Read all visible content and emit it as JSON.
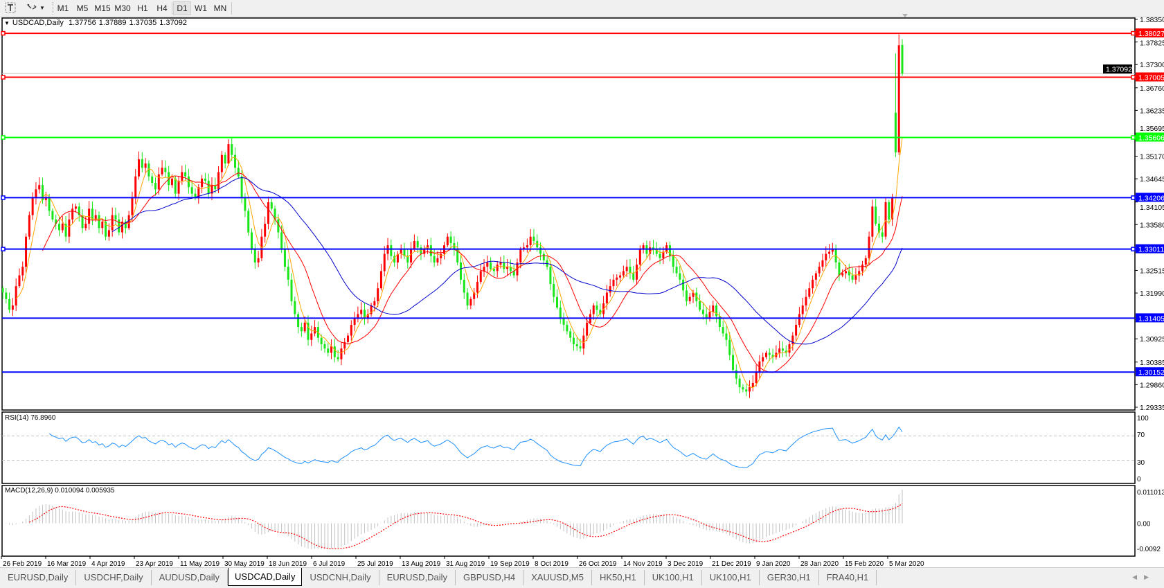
{
  "toolbar": {
    "text_tool_icon": "text-label-icon",
    "arrows_tool_icon": "arrows-icon",
    "timeframes": [
      "M1",
      "M5",
      "M15",
      "M30",
      "H1",
      "H4",
      "D1",
      "W1",
      "MN"
    ],
    "active_timeframe": "D1"
  },
  "header": {
    "symbol": "USDCAD,Daily",
    "open": "1.37756",
    "high": "1.37889",
    "low": "1.37035",
    "close": "1.37092"
  },
  "chart_data": {
    "type": "candlestick",
    "symbol": "USDCAD",
    "timeframe": "Daily",
    "colors": {
      "bull": "#ff0000",
      "bear": "#19e619",
      "ma_fast": "#ffa500",
      "ma_mid": "#ff0000",
      "ma_slow": "#0000cd",
      "rsi": "#1e90ff",
      "macd_hist": "#c0c0c0",
      "macd_signal": "#ff0000"
    },
    "price_axis": {
      "min": 1.29335,
      "max": 1.3835,
      "ticks": [
        "1.38350",
        "1.37825",
        "1.37300",
        "1.36760",
        "1.36235",
        "1.35695",
        "1.35170",
        "1.34645",
        "1.34105",
        "1.33580",
        "1.32515",
        "1.31990",
        "1.30925",
        "1.30385",
        "1.29860",
        "1.29335"
      ]
    },
    "date_labels": [
      "26 Feb 2019",
      "16 Mar 2019",
      "4 Apr 2019",
      "23 Apr 2019",
      "11 May 2019",
      "30 May 2019",
      "18 Jun 2019",
      "6 Jul 2019",
      "25 Jul 2019",
      "13 Aug 2019",
      "31 Aug 2019",
      "19 Sep 2019",
      "8 Oct 2019",
      "26 Oct 2019",
      "14 Nov 2019",
      "3 Dec 2019",
      "21 Dec 2019",
      "9 Jan 2020",
      "28 Jan 2020",
      "15 Feb 2020",
      "5 Mar 2020"
    ],
    "closes": [
      1.32,
      1.3185,
      1.316,
      1.317,
      1.3215,
      1.324,
      1.326,
      1.333,
      1.338,
      1.342,
      1.344,
      1.345,
      1.3415,
      1.342,
      1.339,
      1.337,
      1.336,
      1.3345,
      1.336,
      1.333,
      1.337,
      1.3395,
      1.34,
      1.338,
      1.335,
      1.336,
      1.3395,
      1.337,
      1.338,
      1.335,
      1.3365,
      1.333,
      1.3345,
      1.338,
      1.337,
      1.334,
      1.3365,
      1.335,
      1.338,
      1.342,
      1.347,
      1.351,
      1.349,
      1.35,
      1.347,
      1.3455,
      1.344,
      1.3475,
      1.349,
      1.348,
      1.345,
      1.3465,
      1.343,
      1.346,
      1.348,
      1.347,
      1.3445,
      1.343,
      1.342,
      1.3445,
      1.3465,
      1.346,
      1.343,
      1.345,
      1.344,
      1.348,
      1.352,
      1.35,
      1.3545,
      1.352,
      1.349,
      1.347,
      1.342,
      1.339,
      1.334,
      1.33,
      1.327,
      1.328,
      1.333,
      1.336,
      1.341,
      1.3395,
      1.337,
      1.334,
      1.33,
      1.326,
      1.323,
      1.318,
      1.315,
      1.312,
      1.311,
      1.313,
      1.309,
      1.3105,
      1.312,
      1.3095,
      1.308,
      1.307,
      1.306,
      1.3075,
      1.305,
      1.3045,
      1.307,
      1.3085,
      1.31,
      1.3125,
      1.314,
      1.315,
      1.316,
      1.314,
      1.315,
      1.317,
      1.318,
      1.321,
      1.325,
      1.329,
      1.331,
      1.3285,
      1.327,
      1.329,
      1.33,
      1.3285,
      1.327,
      1.33,
      1.332,
      1.3305,
      1.329,
      1.33,
      1.331,
      1.3285,
      1.327,
      1.328,
      1.329,
      1.331,
      1.333,
      1.3315,
      1.33,
      1.327,
      1.323,
      1.32,
      1.317,
      1.3185,
      1.32,
      1.3225,
      1.325,
      1.326,
      1.327,
      1.3255,
      1.325,
      1.3265,
      1.327,
      1.3255,
      1.326,
      1.325,
      1.324,
      1.327,
      1.33,
      1.3305,
      1.331,
      1.333,
      1.332,
      1.3305,
      1.329,
      1.3275,
      1.326,
      1.322,
      1.319,
      1.3165,
      1.314,
      1.3125,
      1.311,
      1.3095,
      1.308,
      1.3075,
      1.307,
      1.31,
      1.313,
      1.315,
      1.317,
      1.316,
      1.315,
      1.3175,
      1.32,
      1.3215,
      1.323,
      1.3235,
      1.324,
      1.325,
      1.326,
      1.3245,
      1.323,
      1.3265,
      1.33,
      1.331,
      1.329,
      1.3305,
      1.33,
      1.329,
      1.328,
      1.3295,
      1.331,
      1.3285,
      1.326,
      1.3245,
      1.323,
      1.3205,
      1.318,
      1.319,
      1.32,
      1.318,
      1.316,
      1.315,
      1.314,
      1.3155,
      1.317,
      1.3145,
      1.312,
      1.3105,
      1.309,
      1.3055,
      1.302,
      1.3,
      1.298,
      1.2975,
      1.297,
      1.298,
      1.299,
      1.3015,
      1.304,
      1.305,
      1.306,
      1.3055,
      1.305,
      1.306,
      1.307,
      1.3065,
      1.306,
      1.308,
      1.31,
      1.3125,
      1.315,
      1.317,
      1.319,
      1.321,
      1.323,
      1.3245,
      1.326,
      1.3275,
      1.329,
      1.3295,
      1.33,
      1.327,
      1.324,
      1.3245,
      1.325,
      1.324,
      1.323,
      1.324,
      1.325,
      1.3265,
      1.328,
      1.333,
      1.34,
      1.336,
      1.334,
      1.333,
      1.341,
      1.337,
      1.342
    ],
    "last_bars_ohlc": [
      [
        1.3618,
        1.3756,
        1.3515,
        1.3526
      ],
      [
        1.3526,
        1.38,
        1.352,
        1.3775
      ],
      [
        1.37756,
        1.37889,
        1.37035,
        1.37092
      ]
    ],
    "current_price": {
      "value": 1.37092,
      "label": "1.37092"
    },
    "horizontal_levels": [
      {
        "price": 1.38027,
        "label": "1.38027",
        "color": "#ff0000",
        "handles": true
      },
      {
        "price": 1.37005,
        "label": "1.37005",
        "color": "#ff0000",
        "handles": true
      },
      {
        "price": 1.35606,
        "label": "1.35606",
        "color": "#00ff00",
        "handles": true
      },
      {
        "price": 1.34206,
        "label": "1.34206",
        "color": "#0000ff",
        "handles": true
      },
      {
        "price": 1.33011,
        "label": "1.33011",
        "color": "#0000ff",
        "handles": true
      },
      {
        "price": 1.31405,
        "label": "1.31405",
        "color": "#0000ff",
        "handles": false
      },
      {
        "price": 1.30152,
        "label": "1.30152",
        "color": "#0000ff",
        "handles": false
      }
    ],
    "rsi": {
      "label": "RSI(14) 76.8960",
      "ticks": [
        "100",
        "70",
        "30",
        "0"
      ],
      "levels": [
        70,
        30
      ]
    },
    "macd": {
      "label": "MACD(12,26,9) 0.010094 0.005935",
      "ticks": [
        "0.011013",
        "0.00",
        "-0.0092"
      ],
      "max": 0.011013,
      "min": -0.0092
    }
  },
  "tabs": [
    "EURUSD,Daily",
    "USDCHF,Daily",
    "AUDUSD,Daily",
    "USDCAD,Daily",
    "USDCNH,Daily",
    "EURUSD,Daily",
    "GBPUSD,H4",
    "XAUUSD,M5",
    "HK50,H1",
    "UK100,H1",
    "UK100,H1",
    "GER30,H1",
    "FRA40,H1"
  ],
  "active_tab": "USDCAD,Daily"
}
